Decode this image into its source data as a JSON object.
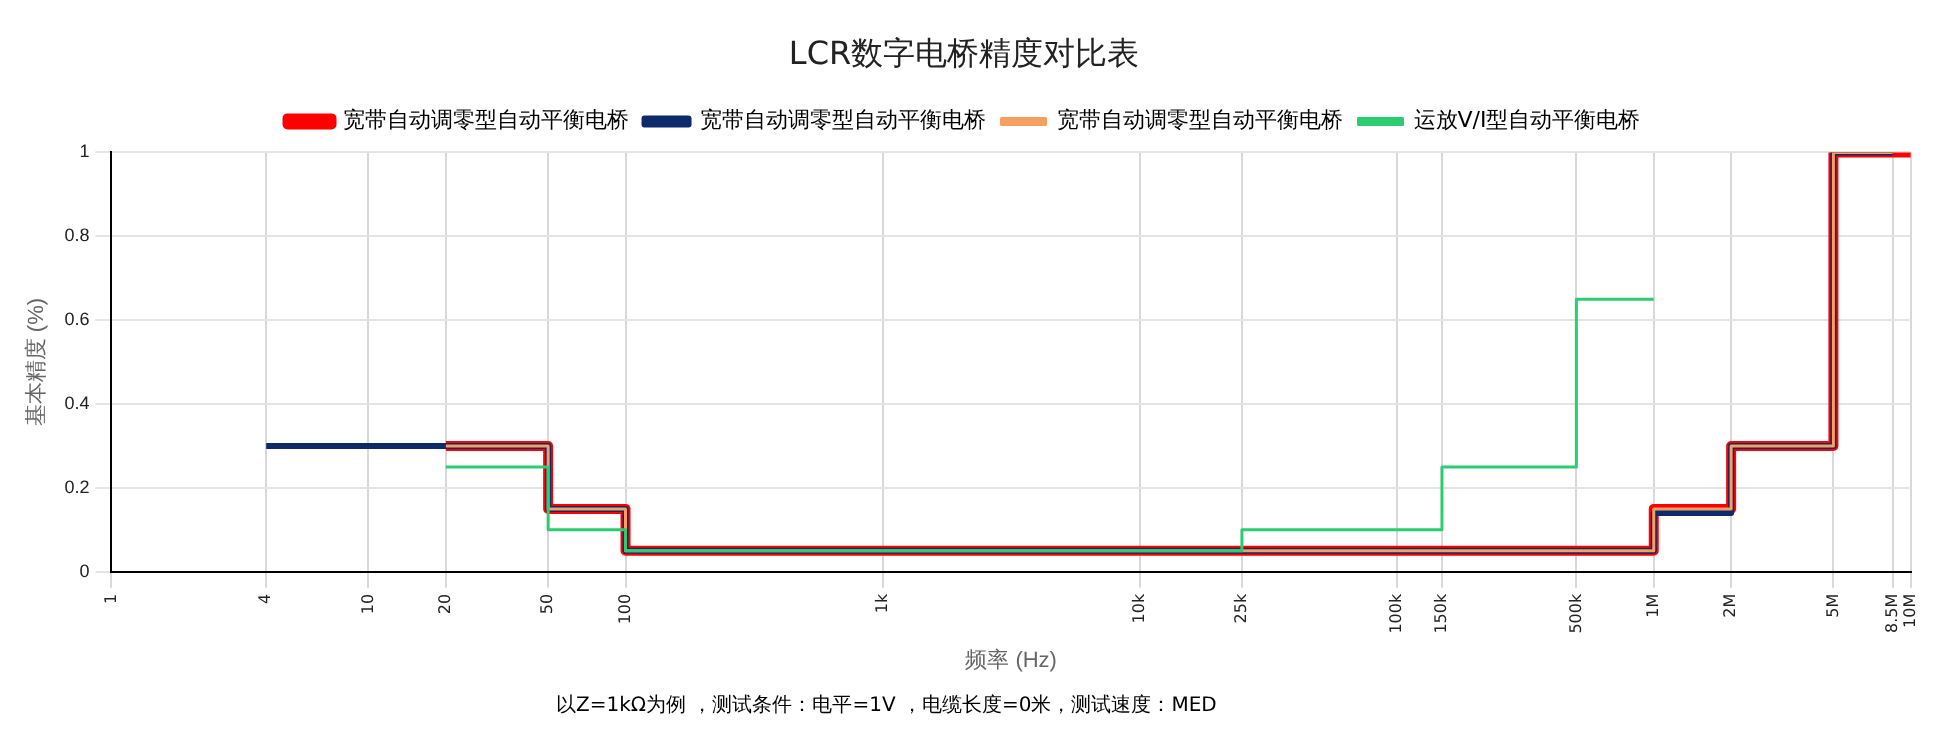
{
  "chart_data": {
    "type": "step",
    "title": "LCR数字电桥精度对比表",
    "xlabel": "频率 (Hz)",
    "ylabel": "基本精度 (%)",
    "log": "x",
    "grid": true,
    "legend": "top",
    "marker": "none",
    "line_style": "solid",
    "xlim": [
      1,
      10000000
    ],
    "ylim": [
      0,
      1
    ],
    "xticks": [
      1,
      4,
      10,
      20,
      50,
      100,
      {
        "value": 1000,
        "label": "1k"
      },
      {
        "value": 10000,
        "label": "10k"
      },
      {
        "value": 25000,
        "label": "25k"
      },
      {
        "value": 100000,
        "label": "100k"
      },
      {
        "value": 150000,
        "label": "150k"
      },
      {
        "value": 500000,
        "label": "500k"
      },
      {
        "value": 1000000,
        "label": "1M"
      },
      {
        "value": 2000000,
        "label": "2M"
      },
      {
        "value": 5000000,
        "label": "5M"
      },
      {
        "value": 8500000,
        "label": "8.5M"
      },
      {
        "value": 10000000,
        "label": "10M"
      }
    ],
    "yticks": [
      0,
      0.2,
      0.4,
      0.6,
      0.8,
      1
    ],
    "series": [
      {
        "name": "宽带自动调零型自动平衡电桥",
        "color": "#ff0000",
        "x": [
          20,
          50,
          100,
          1000000,
          2000000,
          5000000,
          10000000
        ],
        "values": [
          0.3,
          0.15,
          0.05,
          0.15,
          0.3,
          1,
          1
        ]
      },
      {
        "name": "宽带自动调零型自动平衡电桥",
        "color": "#0d2a6b",
        "x": [
          4,
          50,
          100,
          1000000,
          2000000,
          5000000,
          8500000
        ],
        "values": [
          0.3,
          0.15,
          0.05,
          0.14,
          0.3,
          1,
          1
        ]
      },
      {
        "name": "宽带自动调零型自动平衡电桥",
        "color": "#f5a060",
        "x": [
          20,
          50,
          100,
          1000000,
          2000000,
          5000000,
          8500000
        ],
        "values": [
          0.3,
          0.15,
          0.05,
          0.15,
          0.3,
          1,
          1
        ]
      },
      {
        "name": "运放V/I型自动平衡电桥",
        "color": "#2ecc71",
        "x": [
          20,
          50,
          100,
          25000,
          150000,
          500000,
          1000000
        ],
        "values": [
          0.25,
          0.1,
          0.05,
          0.1,
          0.25,
          0.65,
          0.65
        ]
      }
    ],
    "annotations": [
      "以Z=1kΩ为例 ，测试条件：电平=1V ，电缆长度=0米，测试速度：MED"
    ]
  }
}
